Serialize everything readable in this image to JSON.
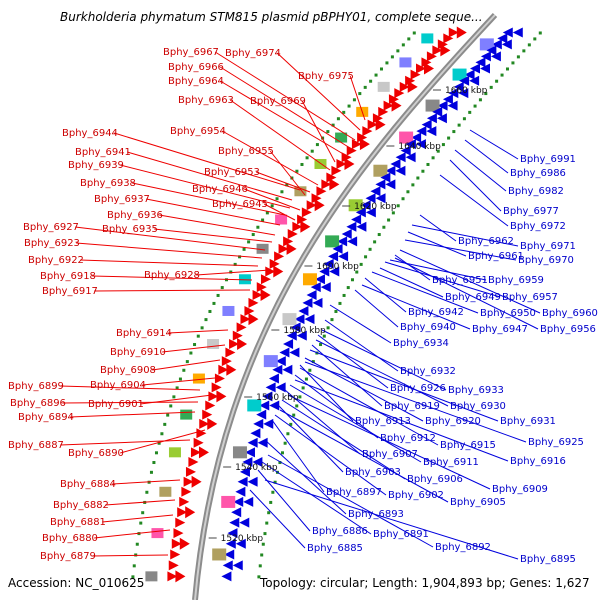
{
  "title": "Burkholderia phymatum STM815 plasmid pBPHY01, complete seque...",
  "footer": {
    "accession": "Accession: NC_010625",
    "topology": "Topology: circular; Length: 1,904,893 bp; Genes: 1,627"
  },
  "colors": {
    "forward": "#ee0000",
    "reverse": "#0000dd",
    "forward_label": "#cc0000",
    "reverse_label": "#0000cc",
    "backbone": "#8c8c8c"
  },
  "ticks": [
    "1660 kbp",
    "1640 kbp",
    "1620 kbp",
    "1600 kbp",
    "1580 kbp",
    "1560 kbp",
    "1540 kbp",
    "1520 kbp"
  ],
  "forward_genes": [
    "Bphy_6974",
    "Bphy_6967",
    "Bphy_6966",
    "Bphy_6975",
    "Bphy_6964",
    "Bphy_6969",
    "Bphy_6963",
    "Bphy_6954",
    "Bphy_6944",
    "Bphy_6955",
    "Bphy_6941",
    "Bphy_6939",
    "Bphy_6953",
    "Bphy_6938",
    "Bphy_6946",
    "Bphy_6937",
    "Bphy_6945",
    "Bphy_6936",
    "Bphy_6935",
    "Bphy_6927",
    "Bphy_6923",
    "Bphy_6922",
    "Bphy_6928",
    "Bphy_6918",
    "Bphy_6917",
    "Bphy_6914",
    "Bphy_6910",
    "Bphy_6908",
    "Bphy_6899",
    "Bphy_6904",
    "Bphy_6896",
    "Bphy_6901",
    "Bphy_6894",
    "Bphy_6887",
    "Bphy_6890",
    "Bphy_6884",
    "Bphy_6882",
    "Bphy_6881",
    "Bphy_6880",
    "Bphy_6879"
  ],
  "reverse_genes": [
    "Bphy_6991",
    "Bphy_6986",
    "Bphy_6982",
    "Bphy_6977",
    "Bphy_6972",
    "Bphy_6962",
    "Bphy_6971",
    "Bphy_6961",
    "Bphy_6970",
    "Bphy_6951",
    "Bphy_6959",
    "Bphy_6949",
    "Bphy_6957",
    "Bphy_6942",
    "Bphy_6950",
    "Bphy_6960",
    "Bphy_6940",
    "Bphy_6947",
    "Bphy_6956",
    "Bphy_6934",
    "Bphy_6932",
    "Bphy_6926",
    "Bphy_6933",
    "Bphy_6919",
    "Bphy_6930",
    "Bphy_6913",
    "Bphy_6920",
    "Bphy_6931",
    "Bphy_6912",
    "Bphy_6915",
    "Bphy_6925",
    "Bphy_6907",
    "Bphy_6911",
    "Bphy_6916",
    "Bphy_6903",
    "Bphy_6906",
    "Bphy_6909",
    "Bphy_6897",
    "Bphy_6902",
    "Bphy_6905",
    "Bphy_6893",
    "Bphy_6886",
    "Bphy_6891",
    "Bphy_6892",
    "Bphy_6885",
    "Bphy_6895"
  ]
}
